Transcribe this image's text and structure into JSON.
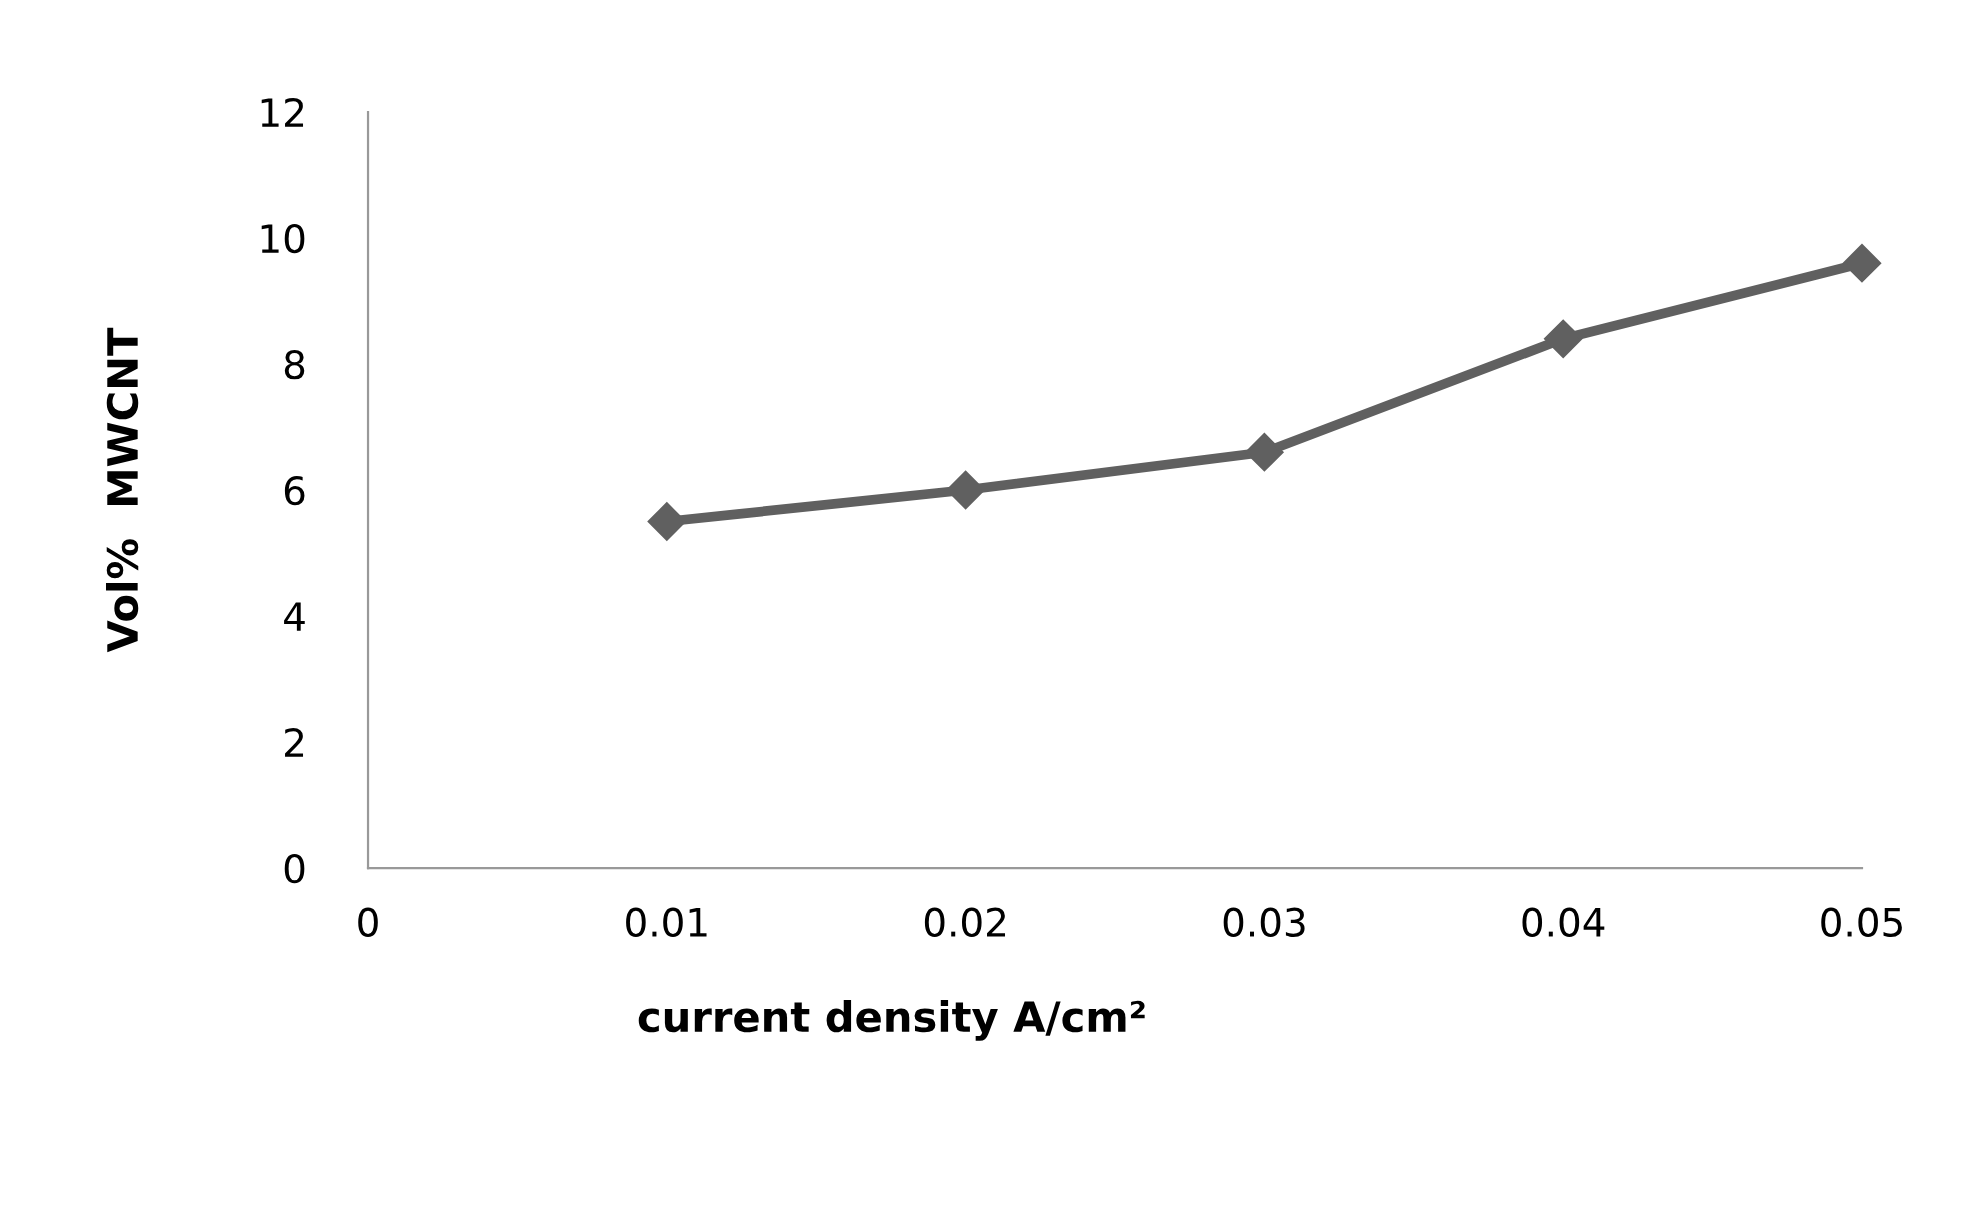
{
  "chart_data": {
    "type": "line",
    "xlabel": "current density A/cm²",
    "ylabel": "Vol%  MWCNT",
    "x": [
      0.01,
      0.02,
      0.03,
      0.04,
      0.05
    ],
    "series": [
      {
        "color": "#606060",
        "values": [
          5.5,
          6.0,
          6.6,
          8.4,
          9.6
        ]
      }
    ],
    "xlim": [
      0,
      0.05
    ],
    "xticks": [
      0,
      0.01,
      0.02,
      0.03,
      0.04,
      0.05
    ],
    "ylim": [
      0,
      12
    ],
    "yticks": [
      0,
      2,
      4,
      6,
      8,
      10,
      12
    ],
    "grid": false,
    "legend": false,
    "marker": "diamond",
    "line_style": "solid"
  }
}
